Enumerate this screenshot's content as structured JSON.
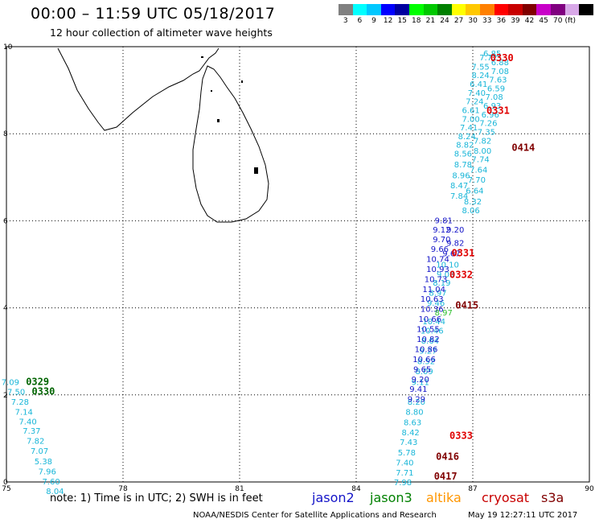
{
  "header": {
    "title": "00:00 – 11:59 UTC 05/18/2017",
    "subtitle": "12 hour collection of altimeter wave heights"
  },
  "colorbar": {
    "colors": [
      "#808080",
      "#00ffff",
      "#00c8ff",
      "#0000ff",
      "#0000a0",
      "#00ff00",
      "#00c800",
      "#008000",
      "#ffff00",
      "#ffc800",
      "#ff8000",
      "#ff0000",
      "#c80000",
      "#800000",
      "#c800c8",
      "#800080",
      "#d8a8e8",
      "#000000"
    ],
    "labels": [
      "3",
      "6",
      "9",
      "12",
      "15",
      "18",
      "21",
      "24",
      "27",
      "30",
      "33",
      "36",
      "39",
      "42",
      "45",
      "70"
    ],
    "unit": "(ft)"
  },
  "axes": {
    "x_ticks": [
      "75",
      "78",
      "81",
      "84",
      "87",
      "90"
    ],
    "y_ticks": [
      "0",
      "2",
      "4",
      "6",
      "8",
      "10"
    ],
    "xlim": [
      75,
      90
    ],
    "ylim": [
      0,
      10
    ]
  },
  "tracks": [
    {
      "color": "#19b6d8",
      "points": [
        {
          "lon": 87.5,
          "lat": 9.85,
          "v": "6.85"
        },
        {
          "lon": 87.4,
          "lat": 9.76,
          "v": "7.72"
        },
        {
          "lon": 87.7,
          "lat": 9.65,
          "v": "6.88"
        },
        {
          "lon": 87.2,
          "lat": 9.55,
          "v": "7.55"
        },
        {
          "lon": 87.7,
          "lat": 9.45,
          "v": "7.08"
        },
        {
          "lon": 87.2,
          "lat": 9.35,
          "v": "8.24"
        },
        {
          "lon": 87.65,
          "lat": 9.25,
          "v": "7.63"
        },
        {
          "lon": 87.15,
          "lat": 9.15,
          "v": "6.41"
        },
        {
          "lon": 87.6,
          "lat": 9.05,
          "v": "6.59"
        },
        {
          "lon": 87.1,
          "lat": 8.95,
          "v": "7.40"
        },
        {
          "lon": 87.55,
          "lat": 8.85,
          "v": "7.08"
        },
        {
          "lon": 87.05,
          "lat": 8.75,
          "v": "7.24"
        },
        {
          "lon": 87.5,
          "lat": 8.65,
          "v": "6.93"
        },
        {
          "lon": 86.95,
          "lat": 8.55,
          "v": "6.61"
        },
        {
          "lon": 87.45,
          "lat": 8.45,
          "v": "6.96"
        },
        {
          "lon": 86.95,
          "lat": 8.35,
          "v": "7.00"
        },
        {
          "lon": 87.4,
          "lat": 8.25,
          "v": "7.26"
        },
        {
          "lon": 86.9,
          "lat": 8.15,
          "v": "7.41"
        },
        {
          "lon": 87.35,
          "lat": 8.05,
          "v": "7.35"
        },
        {
          "lon": 86.85,
          "lat": 7.95,
          "v": "8.24"
        },
        {
          "lon": 87.25,
          "lat": 7.85,
          "v": "7.82"
        },
        {
          "lon": 86.8,
          "lat": 7.75,
          "v": "8.82"
        },
        {
          "lon": 87.25,
          "lat": 7.62,
          "v": "8.00"
        },
        {
          "lon": 86.75,
          "lat": 7.55,
          "v": "8.56"
        },
        {
          "lon": 87.2,
          "lat": 7.42,
          "v": "7.74"
        },
        {
          "lon": 86.75,
          "lat": 7.3,
          "v": "8.78"
        },
        {
          "lon": 87.15,
          "lat": 7.18,
          "v": "7.64"
        },
        {
          "lon": 86.7,
          "lat": 7.05,
          "v": "8.96"
        },
        {
          "lon": 87.1,
          "lat": 6.95,
          "v": "7.70"
        },
        {
          "lon": 86.65,
          "lat": 6.82,
          "v": "8.47"
        },
        {
          "lon": 87.05,
          "lat": 6.7,
          "v": "6.64"
        },
        {
          "lon": 86.65,
          "lat": 6.58,
          "v": "7.84"
        },
        {
          "lon": 87.0,
          "lat": 6.45,
          "v": "8.32"
        },
        {
          "lon": 86.95,
          "lat": 6.25,
          "v": "8.06"
        },
        {
          "lon": 86.35,
          "lat": 5.0,
          "v": "10.10"
        },
        {
          "lon": 86.3,
          "lat": 4.78,
          "v": "9.03"
        },
        {
          "lon": 86.2,
          "lat": 4.58,
          "v": "8.19"
        },
        {
          "lon": 86.1,
          "lat": 4.35,
          "v": "8.97"
        },
        {
          "lon": 86.05,
          "lat": 4.12,
          "v": "9.46"
        },
        {
          "lon": 86.0,
          "lat": 3.7,
          "v": "10.44"
        },
        {
          "lon": 85.95,
          "lat": 3.48,
          "v": "10.46"
        },
        {
          "lon": 85.9,
          "lat": 3.25,
          "v": "8.64"
        },
        {
          "lon": 85.85,
          "lat": 3.02,
          "v": "9.27"
        },
        {
          "lon": 85.8,
          "lat": 2.78,
          "v": "8.52"
        },
        {
          "lon": 85.75,
          "lat": 2.55,
          "v": "8.09"
        },
        {
          "lon": 85.65,
          "lat": 2.3,
          "v": "9.11"
        },
        {
          "lon": 85.55,
          "lat": 1.85,
          "v": "8.20"
        },
        {
          "lon": 85.5,
          "lat": 1.62,
          "v": "8.80"
        },
        {
          "lon": 85.45,
          "lat": 1.38,
          "v": "8.63"
        },
        {
          "lon": 85.4,
          "lat": 1.15,
          "v": "8.42"
        },
        {
          "lon": 85.35,
          "lat": 0.92,
          "v": "7.43"
        },
        {
          "lon": 85.3,
          "lat": 0.68,
          "v": "5.78"
        },
        {
          "lon": 85.25,
          "lat": 0.45,
          "v": "7.40"
        },
        {
          "lon": 85.25,
          "lat": 0.22,
          "v": "7.71"
        },
        {
          "lon": 85.2,
          "lat": 0.0,
          "v": "7.98"
        },
        {
          "lon": 75.1,
          "lat": 2.3,
          "v": "7.09"
        },
        {
          "lon": 75.25,
          "lat": 2.08,
          "v": "7.50"
        },
        {
          "lon": 75.35,
          "lat": 1.85,
          "v": "7.28"
        },
        {
          "lon": 75.45,
          "lat": 1.62,
          "v": "7.14"
        },
        {
          "lon": 75.55,
          "lat": 1.4,
          "v": "7.40"
        },
        {
          "lon": 75.65,
          "lat": 1.18,
          "v": "7.37"
        },
        {
          "lon": 75.75,
          "lat": 0.95,
          "v": "7.82"
        },
        {
          "lon": 75.85,
          "lat": 0.72,
          "v": "7.07"
        },
        {
          "lon": 75.95,
          "lat": 0.48,
          "v": "5.38"
        },
        {
          "lon": 76.05,
          "lat": 0.25,
          "v": "7.96"
        },
        {
          "lon": 76.15,
          "lat": 0.02,
          "v": "7.60"
        },
        {
          "lon": 76.25,
          "lat": -0.2,
          "v": "8.04"
        }
      ]
    },
    {
      "color": "#1414c8",
      "points": [
        {
          "lon": 86.25,
          "lat": 6.02,
          "v": "9.81"
        },
        {
          "lon": 86.2,
          "lat": 5.8,
          "v": "9.12"
        },
        {
          "lon": 86.55,
          "lat": 5.8,
          "v": "9.20"
        },
        {
          "lon": 86.2,
          "lat": 5.58,
          "v": "9.70"
        },
        {
          "lon": 86.55,
          "lat": 5.5,
          "v": "9.82"
        },
        {
          "lon": 86.15,
          "lat": 5.36,
          "v": "9.66"
        },
        {
          "lon": 86.45,
          "lat": 5.26,
          "v": "9.67"
        },
        {
          "lon": 86.1,
          "lat": 5.13,
          "v": "10.74"
        },
        {
          "lon": 86.1,
          "lat": 4.9,
          "v": "10.93"
        },
        {
          "lon": 86.05,
          "lat": 4.67,
          "v": "10.73"
        },
        {
          "lon": 86.0,
          "lat": 4.44,
          "v": "11.04"
        },
        {
          "lon": 85.95,
          "lat": 4.21,
          "v": "10.63"
        },
        {
          "lon": 85.95,
          "lat": 3.98,
          "v": "10.36"
        },
        {
          "lon": 85.9,
          "lat": 3.75,
          "v": "10.66"
        },
        {
          "lon": 85.85,
          "lat": 3.52,
          "v": "10.55"
        },
        {
          "lon": 85.85,
          "lat": 3.29,
          "v": "10.82"
        },
        {
          "lon": 85.8,
          "lat": 3.06,
          "v": "10.86"
        },
        {
          "lon": 85.75,
          "lat": 2.83,
          "v": "10.66"
        },
        {
          "lon": 85.7,
          "lat": 2.6,
          "v": "9.65"
        },
        {
          "lon": 85.65,
          "lat": 2.37,
          "v": "9.20"
        },
        {
          "lon": 85.6,
          "lat": 2.14,
          "v": "9.41"
        },
        {
          "lon": 85.55,
          "lat": 1.91,
          "v": "9.29"
        }
      ]
    },
    {
      "color": "#30c030",
      "points": [
        {
          "lon": 86.25,
          "lat": 3.9,
          "v": "8.97"
        }
      ]
    }
  ],
  "time_labels": [
    {
      "lon": 87.75,
      "lat": 9.76,
      "v": "0330",
      "color": "#e00000"
    },
    {
      "lon": 87.65,
      "lat": 8.55,
      "v": "0331",
      "color": "#e00000"
    },
    {
      "lon": 88.3,
      "lat": 7.7,
      "v": "0414",
      "color": "#800000"
    },
    {
      "lon": 86.75,
      "lat": 5.28,
      "v": "0331",
      "color": "#e00000"
    },
    {
      "lon": 86.7,
      "lat": 4.78,
      "v": "0332",
      "color": "#e00000"
    },
    {
      "lon": 86.85,
      "lat": 4.08,
      "v": "0415",
      "color": "#800000"
    },
    {
      "lon": 86.7,
      "lat": 1.08,
      "v": "0333",
      "color": "#e00000"
    },
    {
      "lon": 86.35,
      "lat": 0.6,
      "v": "0416",
      "color": "#800000"
    },
    {
      "lon": 86.3,
      "lat": 0.15,
      "v": "0417",
      "color": "#800000"
    },
    {
      "lon": 75.8,
      "lat": 2.32,
      "v": "0329",
      "color": "#006400"
    },
    {
      "lon": 75.95,
      "lat": 2.1,
      "v": "0330",
      "color": "#006400"
    }
  ],
  "notes": {
    "text": "note: 1) Time is in UTC; 2) SWH is in feet",
    "satellites": [
      {
        "name": "jason2",
        "color": "#1414c8"
      },
      {
        "name": "jason3",
        "color": "#008000"
      },
      {
        "name": "altika",
        "color": "#ff9600"
      },
      {
        "name": "cryosat",
        "color": "#c80000"
      },
      {
        "name": "s3a",
        "color": "#800000"
      }
    ]
  },
  "footer": {
    "left": "NOAA/NESDIS Center for Satellite Applications and Research",
    "right": "May 19 12:27:11 UTC 2017"
  }
}
